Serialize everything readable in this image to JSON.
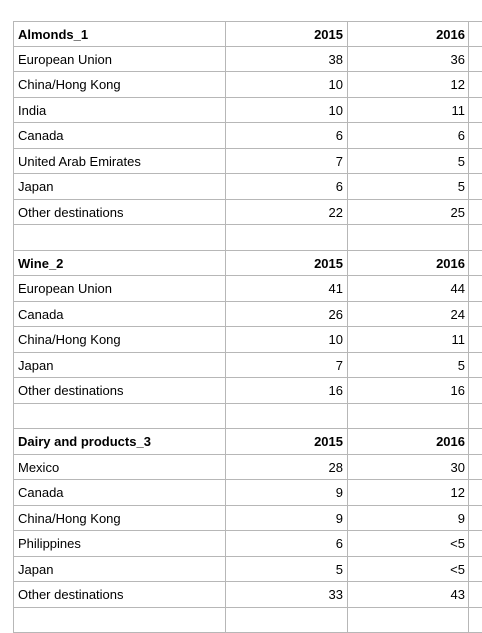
{
  "sections": [
    {
      "title": "Almonds_1",
      "col1": "2015",
      "col2": "2016",
      "rows": [
        {
          "label": "European Union",
          "v2015": "38",
          "v2016": "36"
        },
        {
          "label": "China/Hong Kong",
          "v2015": "10",
          "v2016": "12"
        },
        {
          "label": "India",
          "v2015": "10",
          "v2016": "11"
        },
        {
          "label": "Canada",
          "v2015": "6",
          "v2016": "6"
        },
        {
          "label": "United Arab Emirates",
          "v2015": "7",
          "v2016": "5"
        },
        {
          "label": "Japan",
          "v2015": "6",
          "v2016": "5"
        },
        {
          "label": "Other destinations",
          "v2015": "22",
          "v2016": "25"
        }
      ]
    },
    {
      "title": "Wine_2",
      "col1": "2015",
      "col2": "2016",
      "rows": [
        {
          "label": "European Union",
          "v2015": "41",
          "v2016": "44"
        },
        {
          "label": "Canada",
          "v2015": "26",
          "v2016": "24"
        },
        {
          "label": "China/Hong Kong",
          "v2015": "10",
          "v2016": "11"
        },
        {
          "label": "Japan",
          "v2015": "7",
          "v2016": "5"
        },
        {
          "label": "Other destinations",
          "v2015": "16",
          "v2016": "16"
        }
      ]
    },
    {
      "title": "Dairy and products_3",
      "col1": "2015",
      "col2": "2016",
      "rows": [
        {
          "label": "Mexico",
          "v2015": "28",
          "v2016": "30"
        },
        {
          "label": "Canada",
          "v2015": "9",
          "v2016": "12"
        },
        {
          "label": "China/Hong Kong",
          "v2015": "9",
          "v2016": "9"
        },
        {
          "label": "Philippines",
          "v2015": "6",
          "v2016": "<5"
        },
        {
          "label": "Japan",
          "v2015": "5",
          "v2016": "<5"
        },
        {
          "label": "Other destinations",
          "v2015": "33",
          "v2016": "43"
        }
      ]
    }
  ]
}
